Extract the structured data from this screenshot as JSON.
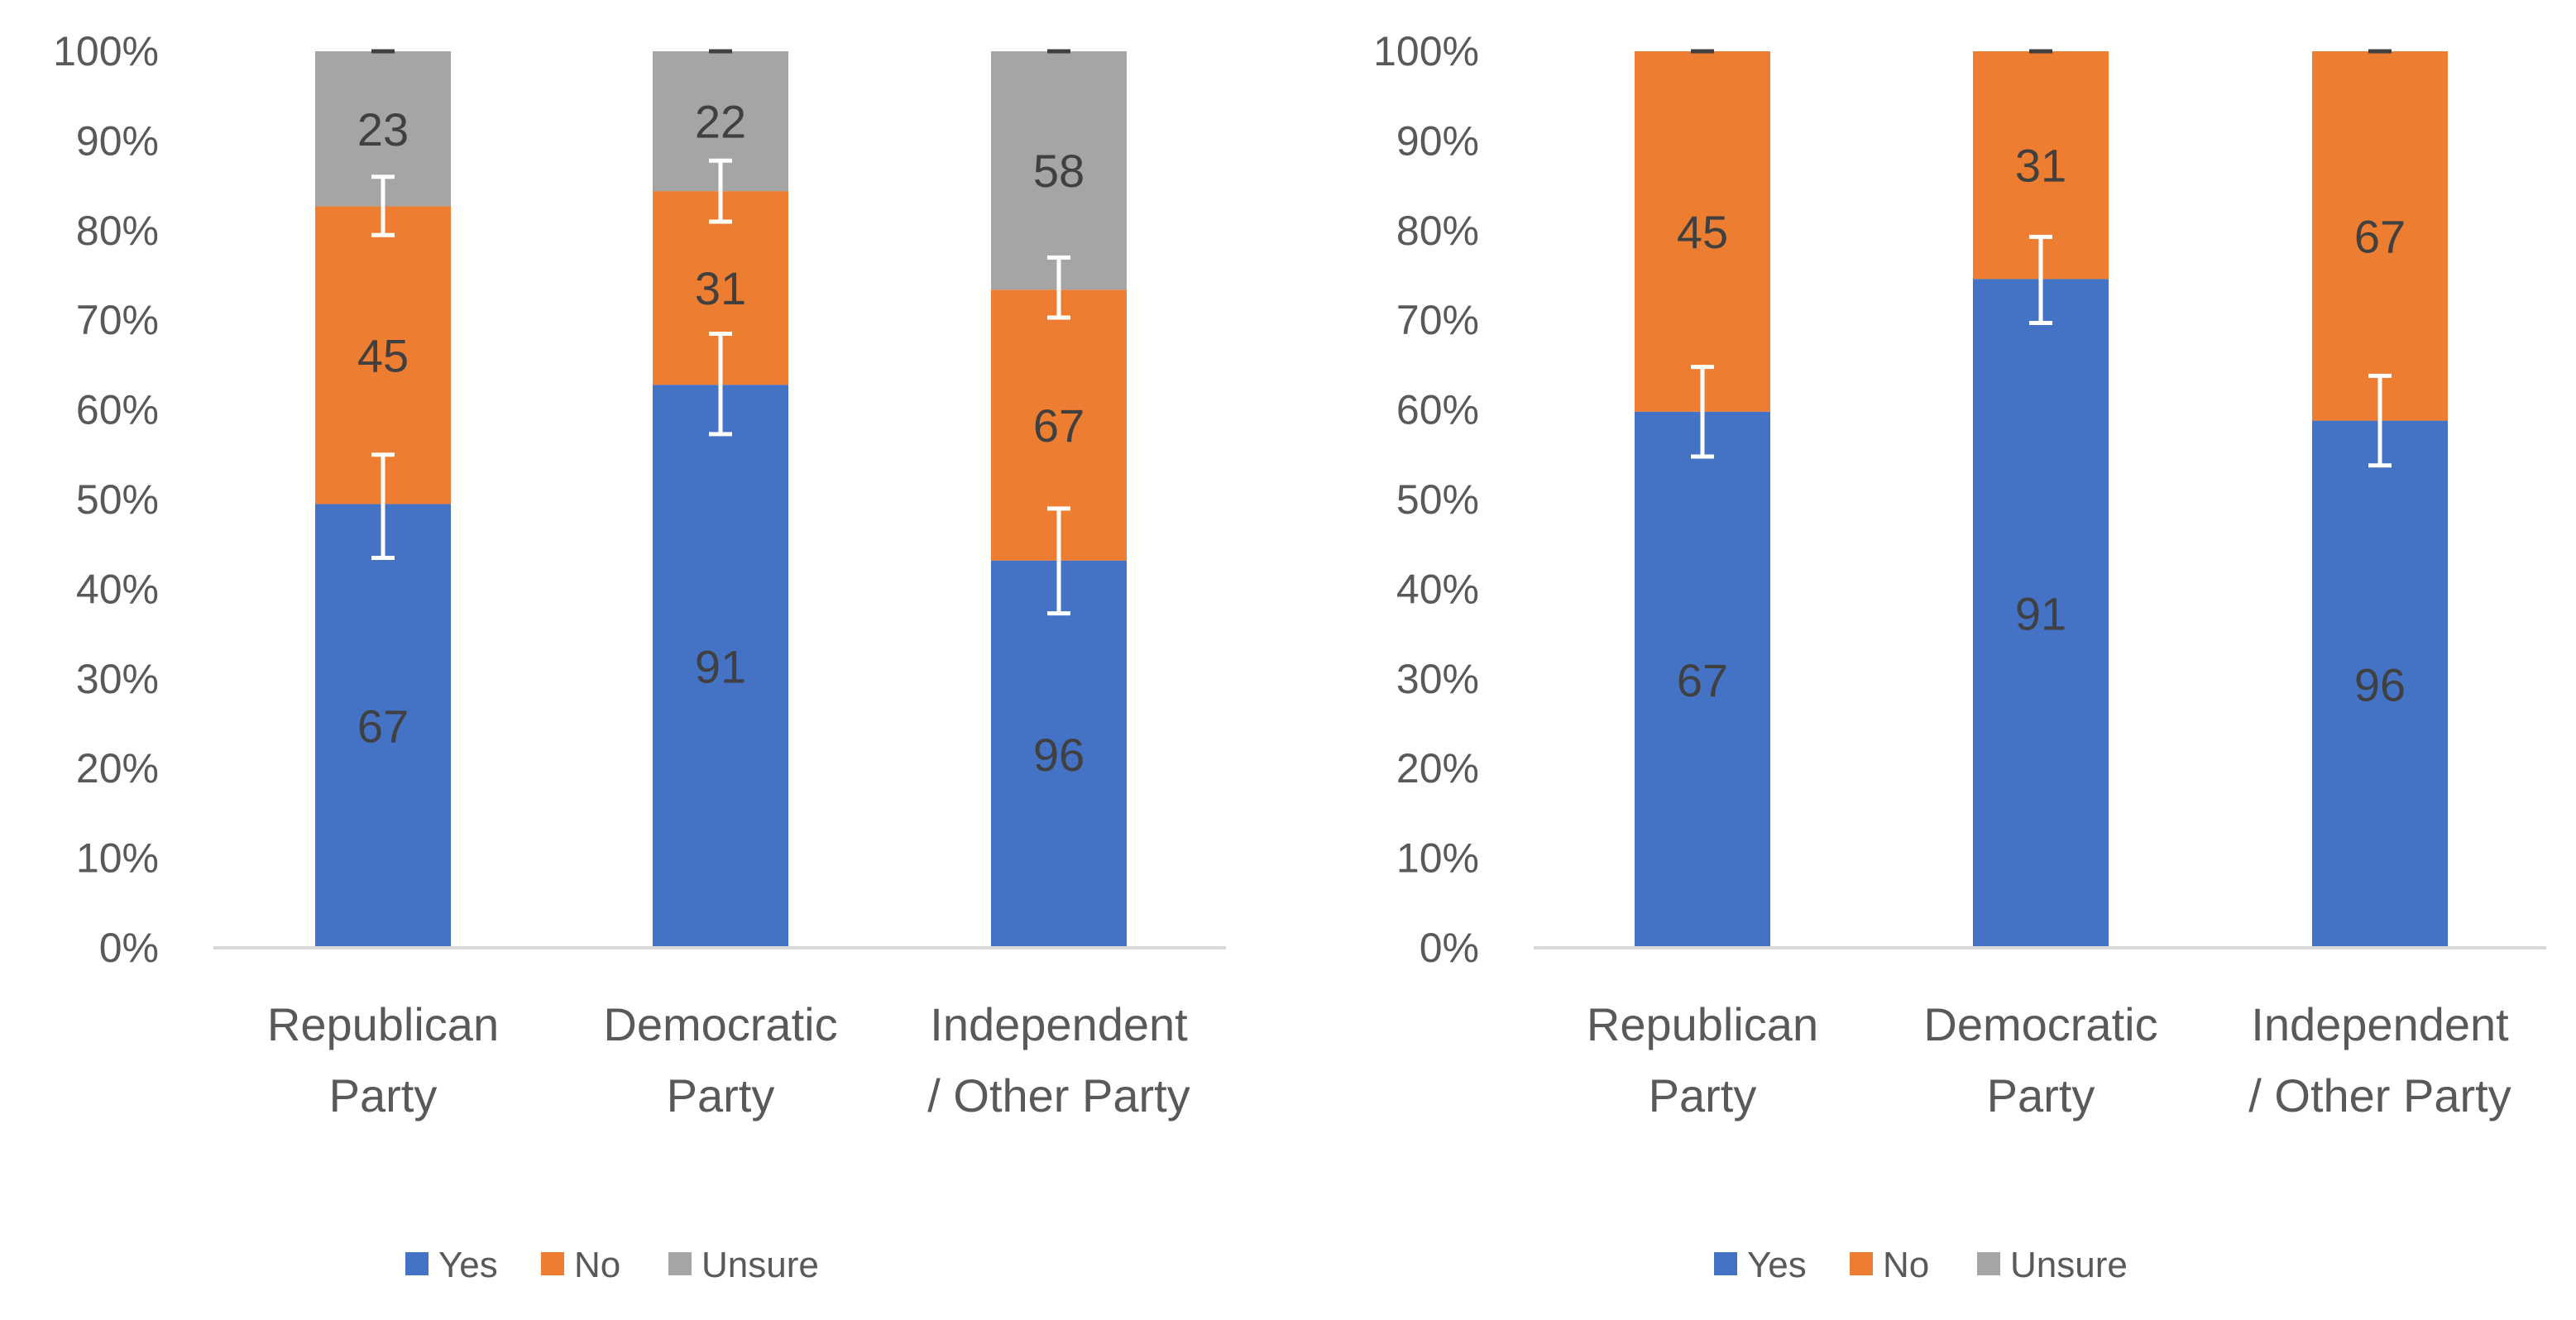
{
  "chart_data": [
    {
      "type": "bar",
      "stacked": true,
      "percent_stacked": true,
      "categories": [
        [
          "Republican",
          "Party"
        ],
        [
          "Democratic",
          "Party"
        ],
        [
          "Independent",
          "/ Other Party"
        ]
      ],
      "y_ticks": [
        "0%",
        "10%",
        "20%",
        "30%",
        "40%",
        "50%",
        "60%",
        "70%",
        "80%",
        "90%",
        "100%"
      ],
      "ylim": [
        0,
        100
      ],
      "series": [
        {
          "name": "Yes",
          "color": "#4472C4",
          "values": [
            49.5,
            62.8,
            43.2
          ],
          "labels": [
            "67",
            "91",
            "96"
          ],
          "error": [
            [
              43.5,
              55.0
            ],
            [
              57.3,
              68.5
            ],
            [
              37.3,
              49.0
            ]
          ]
        },
        {
          "name": "No",
          "color": "#ED7D31",
          "values": [
            33.2,
            21.6,
            30.2
          ],
          "labels": [
            "45",
            "31",
            "67"
          ],
          "error": [
            [
              79.5,
              86.0
            ],
            [
              81.0,
              87.8
            ],
            [
              70.3,
              77.0
            ]
          ]
        },
        {
          "name": "Unsure",
          "color": "#A5A5A5",
          "values": [
            17.3,
            15.6,
            26.6
          ],
          "labels": [
            "23",
            "22",
            "58"
          ],
          "error": [
            [
              100,
              100
            ],
            [
              100,
              100
            ],
            [
              100,
              100
            ]
          ]
        }
      ],
      "legend": [
        "Yes",
        "No",
        "Unsure"
      ],
      "legend_position": "bottom",
      "grid": false
    },
    {
      "type": "bar",
      "stacked": true,
      "percent_stacked": true,
      "categories": [
        [
          "Republican",
          "Party"
        ],
        [
          "Democratic",
          "Party"
        ],
        [
          "Independent",
          "/ Other Party"
        ]
      ],
      "y_ticks": [
        "0%",
        "10%",
        "20%",
        "30%",
        "40%",
        "50%",
        "60%",
        "70%",
        "80%",
        "90%",
        "100%"
      ],
      "ylim": [
        0,
        100
      ],
      "series": [
        {
          "name": "Yes",
          "color": "#4472C4",
          "values": [
            59.8,
            74.6,
            58.8
          ],
          "labels": [
            "67",
            "91",
            "96"
          ],
          "error": [
            [
              54.8,
              64.8
            ],
            [
              69.7,
              79.3
            ],
            [
              53.8,
              63.8
            ]
          ]
        },
        {
          "name": "No",
          "color": "#ED7D31",
          "values": [
            40.2,
            25.4,
            41.2
          ],
          "labels": [
            "45",
            "31",
            "67"
          ],
          "error": [
            [
              100,
              100
            ],
            [
              100,
              100
            ],
            [
              100,
              100
            ]
          ]
        },
        {
          "name": "Unsure",
          "color": "#A5A5A5",
          "values": [
            0,
            0,
            0
          ],
          "labels": [
            "",
            "",
            ""
          ],
          "error": null
        }
      ],
      "legend": [
        "Yes",
        "No",
        "Unsure"
      ],
      "legend_position": "bottom",
      "grid": false
    }
  ]
}
